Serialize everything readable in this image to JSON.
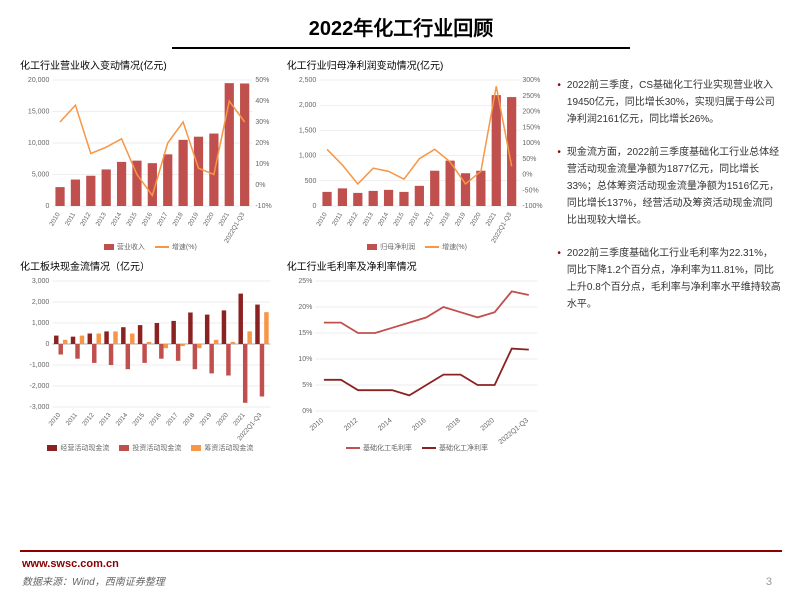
{
  "title": "2022年化工行业回顾",
  "charts": {
    "c1": {
      "title": "化工行业营业收入变动情况(亿元)",
      "type": "bar_line_dual",
      "categories": [
        "2010",
        "2011",
        "2012",
        "2013",
        "2014",
        "2015",
        "2016",
        "2017",
        "2018",
        "2019",
        "2020",
        "2021",
        "2022Q1-Q3"
      ],
      "bars": [
        3000,
        4200,
        4800,
        5800,
        7000,
        7200,
        6800,
        8200,
        10500,
        11000,
        11500,
        19500,
        19450
      ],
      "bar_color": "#c0504d",
      "line": [
        30,
        38,
        15,
        18,
        22,
        5,
        -5,
        20,
        30,
        8,
        5,
        40,
        30
      ],
      "line_color": "#f79646",
      "yl": {
        "min": 0,
        "max": 20000,
        "step": 5000
      },
      "yr": {
        "min": -10,
        "max": 50,
        "step": 10
      },
      "legend": [
        {
          "label": "营业收入",
          "type": "box",
          "color": "#c0504d"
        },
        {
          "label": "增速(%)",
          "type": "line",
          "color": "#f79646"
        }
      ]
    },
    "c2": {
      "title": "化工行业归母净利润变动情况(亿元)",
      "type": "bar_line_dual",
      "categories": [
        "2010",
        "2011",
        "2012",
        "2013",
        "2014",
        "2015",
        "2016",
        "2017",
        "2018",
        "2019",
        "2020",
        "2021",
        "2022Q1-Q3"
      ],
      "bars": [
        280,
        350,
        260,
        300,
        320,
        280,
        400,
        700,
        900,
        650,
        700,
        2200,
        2161
      ],
      "bar_color": "#c0504d",
      "line": [
        80,
        30,
        -30,
        20,
        10,
        -15,
        50,
        80,
        40,
        -30,
        10,
        280,
        26
      ],
      "line_color": "#f79646",
      "yl": {
        "min": 0,
        "max": 2500,
        "step": 500
      },
      "yr": {
        "min": -100,
        "max": 300,
        "step": 50
      },
      "legend": [
        {
          "label": "归母净利润",
          "type": "box",
          "color": "#c0504d"
        },
        {
          "label": "增速(%)",
          "type": "line",
          "color": "#f79646"
        }
      ]
    },
    "c3": {
      "title": "化工板块现金流情况（亿元）",
      "type": "grouped_bar",
      "categories": [
        "2010",
        "2011",
        "2012",
        "2013",
        "2014",
        "2015",
        "2016",
        "2017",
        "2018",
        "2019",
        "2020",
        "2021",
        "2022Q1-Q3"
      ],
      "series": [
        {
          "name": "经营活动现金流",
          "color": "#8b2222",
          "values": [
            400,
            350,
            500,
            600,
            800,
            900,
            1000,
            1100,
            1500,
            1400,
            1600,
            2400,
            1877
          ]
        },
        {
          "name": "投资活动现金流",
          "color": "#c0504d",
          "values": [
            -500,
            -700,
            -900,
            -1000,
            -1200,
            -900,
            -700,
            -800,
            -1200,
            -1400,
            -1500,
            -2800,
            -2500
          ]
        },
        {
          "name": "筹资活动现金流",
          "color": "#f79646",
          "values": [
            200,
            400,
            500,
            600,
            500,
            100,
            -200,
            -100,
            -200,
            200,
            100,
            600,
            1516
          ]
        }
      ],
      "yl": {
        "min": -3000,
        "max": 3000,
        "step": 1000
      }
    },
    "c4": {
      "title": "化工行业毛利率及净利率情况",
      "type": "line",
      "categories": [
        "2010",
        "2012",
        "2014",
        "2016",
        "2018",
        "2020",
        "2022Q1-Q3"
      ],
      "all_x": [
        "2010",
        "2011",
        "2012",
        "2013",
        "2014",
        "2015",
        "2016",
        "2017",
        "2018",
        "2019",
        "2020",
        "2021",
        "2022Q1-Q3"
      ],
      "series": [
        {
          "name": "基础化工毛利率",
          "color": "#c0504d",
          "values": [
            17,
            17,
            15,
            15,
            16,
            17,
            18,
            20,
            19,
            18,
            19,
            23,
            22.31
          ]
        },
        {
          "name": "基础化工净利率",
          "color": "#8b2222",
          "values": [
            6,
            6,
            4,
            4,
            4,
            3,
            5,
            7,
            7,
            5,
            5,
            12,
            11.81
          ]
        }
      ],
      "yl": {
        "min": 0,
        "max": 25,
        "step": 5,
        "suffix": "%"
      }
    }
  },
  "bullets": [
    "2022前三季度，CS基础化工行业实现营业收入19450亿元，同比增长30%，实现归属于母公司净利润2161亿元，同比增长26%。",
    "现金流方面，2022前三季度基础化工行业总体经营活动现金流量净额为1877亿元，同比增长33%；总体筹资活动现金流量净额为1516亿元，同比增长137%，经营活动及筹资活动现金流同比出现较大增长。",
    "2022前三季度基础化工行业毛利率为22.31%，同比下降1.2个百分点，净利率为11.81%，同比上升0.8个百分点，毛利率与净利率水平维持较高水平。"
  ],
  "footer": {
    "url": "www.swsc.com.cn",
    "source": "数据来源：Wind，西南证券整理",
    "page": "3"
  }
}
